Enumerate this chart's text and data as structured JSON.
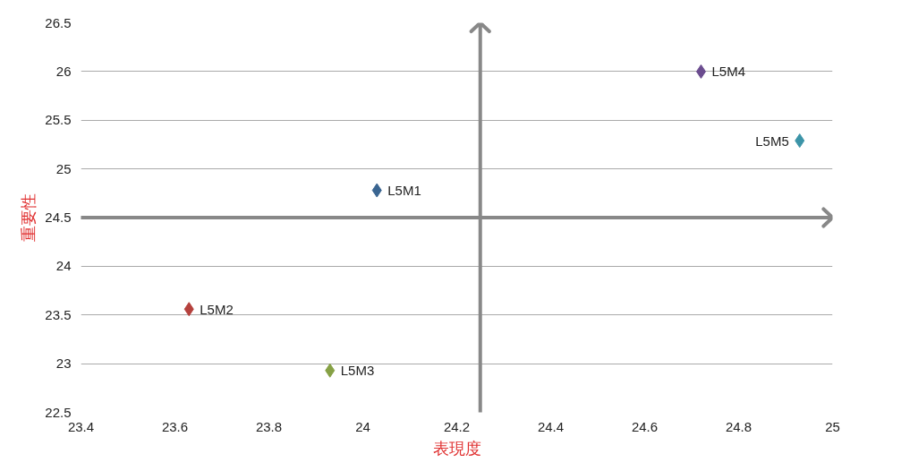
{
  "chart_data": {
    "type": "scatter",
    "xlabel": "表現度",
    "ylabel": "重要性",
    "xlim": [
      23.4,
      25
    ],
    "xticks": [
      23.4,
      23.6,
      23.8,
      24,
      24.2,
      24.4,
      24.6,
      24.8,
      25
    ],
    "ylim": [
      22.5,
      26.5
    ],
    "yticks": [
      22.5,
      23,
      23.5,
      24,
      24.5,
      25,
      25.5,
      26,
      26.5
    ],
    "grid": "y",
    "marker": "diamond",
    "ref_lines": [
      {
        "axis": "x",
        "value": 24.25,
        "color": "#888888"
      },
      {
        "axis": "y",
        "value": 24.5,
        "color": "#888888"
      }
    ],
    "series": [
      {
        "name": "L5M1",
        "color": "#3a6591",
        "x": [
          24.03
        ],
        "values": [
          24.78
        ]
      },
      {
        "name": "L5M2",
        "color": "#b5413d",
        "x": [
          23.63
        ],
        "values": [
          23.56
        ]
      },
      {
        "name": "L5M3",
        "color": "#86a145",
        "x": [
          23.93
        ],
        "values": [
          22.93
        ]
      },
      {
        "name": "L5M4",
        "color": "#6b4c8f",
        "x": [
          24.72
        ],
        "values": [
          26.0
        ]
      },
      {
        "name": "L5M5",
        "color": "#3c94a8",
        "x": [
          24.93
        ],
        "values": [
          25.29
        ]
      }
    ]
  }
}
